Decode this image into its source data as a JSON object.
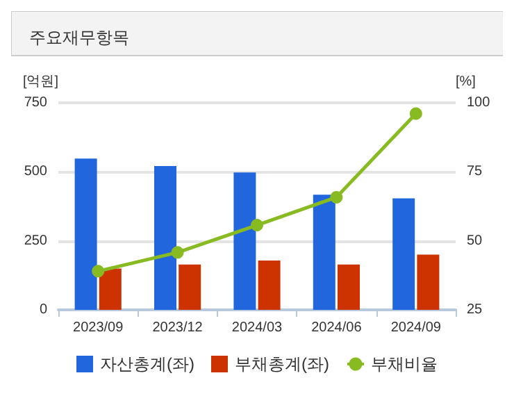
{
  "chart_data": {
    "type": "bar",
    "title": "주요재무항목",
    "ylabel": "[억원]",
    "y2label": "[%]",
    "categories": [
      "2023/09",
      "2023/12",
      "2024/03",
      "2024/06",
      "2024/09"
    ],
    "series": [
      {
        "name": "자산총계(좌)",
        "color": "#2266dd",
        "values": [
          548,
          521,
          498,
          417,
          404
        ]
      },
      {
        "name": "부채총계(좌)",
        "color": "#cc3300",
        "values": [
          150,
          164,
          179,
          164,
          200
        ]
      },
      {
        "name": "부채비율",
        "type": "line",
        "axis": "y2",
        "color": "#88bb22",
        "values": [
          39,
          45.8,
          55.7,
          65.8,
          96.1
        ]
      }
    ],
    "ylim": [
      0,
      750
    ],
    "yticks": [
      0,
      250,
      500,
      750
    ],
    "y2lim": [
      25,
      100
    ],
    "y2ticks": [
      25,
      50,
      75,
      100
    ],
    "grid": "y",
    "legend": "bottom",
    "marker": "circle"
  }
}
